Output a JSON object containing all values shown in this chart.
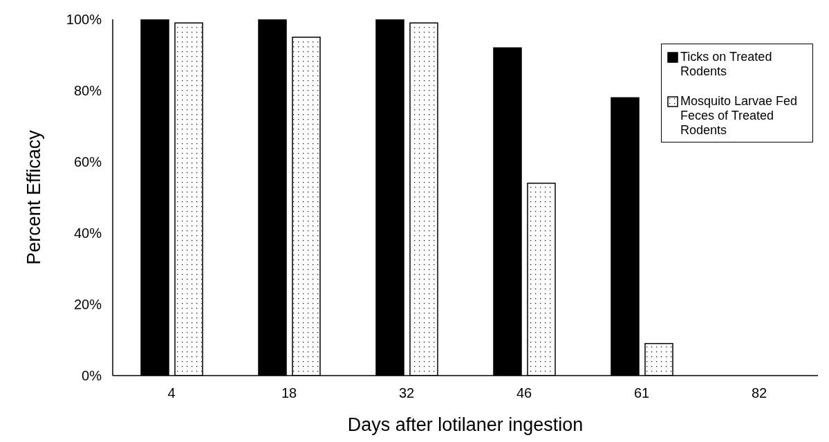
{
  "chart_data": {
    "type": "bar",
    "xlabel": "Days after lotilaner ingestion",
    "ylabel": "Percent Efficacy",
    "categories": [
      "4",
      "18",
      "32",
      "46",
      "61",
      "82"
    ],
    "series": [
      {
        "name": "Ticks on Treated Rodents",
        "color": "#000000",
        "values": [
          100,
          100,
          100,
          92,
          78,
          0
        ]
      },
      {
        "name": "Mosquito Larvae Fed Feces of Treated Rodents",
        "color": "#ffffff",
        "values": [
          99,
          95,
          99,
          54,
          9,
          0
        ]
      }
    ],
    "ylim": [
      0,
      100
    ],
    "yticks": [
      {
        "value": 0,
        "label": "0%"
      },
      {
        "value": 20,
        "label": "20%"
      },
      {
        "value": 40,
        "label": "40%"
      },
      {
        "value": 60,
        "label": "60%"
      },
      {
        "value": 80,
        "label": "80%"
      },
      {
        "value": 100,
        "label": "100%"
      }
    ],
    "grid": false,
    "legend": "top right"
  }
}
